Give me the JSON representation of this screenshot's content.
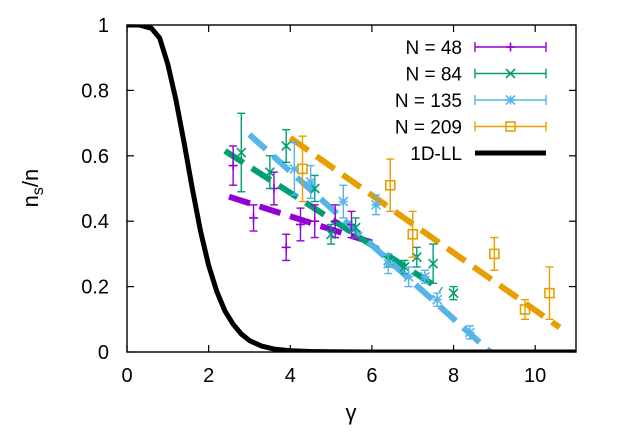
{
  "chart_data": {
    "type": "scatter",
    "xlabel": "γ",
    "ylabel": "n_s/n",
    "xlim": [
      0,
      11
    ],
    "ylim": [
      0,
      1
    ],
    "x_ticks": [
      0,
      2,
      4,
      6,
      8,
      10
    ],
    "y_ticks": [
      0,
      0.2,
      0.4,
      0.6,
      0.8,
      1
    ],
    "x_tick_labels": [
      "0",
      "2",
      "4",
      "6",
      "8",
      "10"
    ],
    "y_tick_labels": [
      "0",
      "0.2",
      "0.4",
      "0.6",
      "0.8",
      "1"
    ],
    "grid": false,
    "legend_position": "top-right",
    "series": [
      {
        "name": "N = 48",
        "color": "#9400d3",
        "marker": "plus",
        "points": [
          {
            "x": 2.6,
            "y": 0.57,
            "err": 0.06
          },
          {
            "x": 3.1,
            "y": 0.41,
            "err": 0.04
          },
          {
            "x": 3.6,
            "y": 0.5,
            "err": 0.05
          },
          {
            "x": 3.9,
            "y": 0.32,
            "err": 0.04
          },
          {
            "x": 4.25,
            "y": 0.39,
            "err": 0.05
          },
          {
            "x": 4.6,
            "y": 0.4,
            "err": 0.05
          },
          {
            "x": 5.1,
            "y": 0.4,
            "err": 0.05
          },
          {
            "x": 5.5,
            "y": 0.39,
            "err": 0.04
          }
        ],
        "fit": [
          [
            2.5,
            0.475
          ],
          [
            6.0,
            0.335
          ]
        ]
      },
      {
        "name": "N = 84",
        "color": "#009e73",
        "marker": "cross",
        "points": [
          {
            "x": 2.8,
            "y": 0.61,
            "err": 0.12
          },
          {
            "x": 3.5,
            "y": 0.55,
            "err": 0.05
          },
          {
            "x": 3.9,
            "y": 0.63,
            "err": 0.05
          },
          {
            "x": 4.6,
            "y": 0.5,
            "err": 0.04
          },
          {
            "x": 5.0,
            "y": 0.36,
            "err": 0.03
          },
          {
            "x": 5.6,
            "y": 0.38,
            "err": 0.03
          },
          {
            "x": 6.4,
            "y": 0.28,
            "err": 0.02
          },
          {
            "x": 6.8,
            "y": 0.26,
            "err": 0.02
          },
          {
            "x": 7.1,
            "y": 0.29,
            "err": 0.03
          },
          {
            "x": 7.5,
            "y": 0.27,
            "err": 0.06
          },
          {
            "x": 8.0,
            "y": 0.18,
            "err": 0.02
          }
        ],
        "fit": [
          [
            2.4,
            0.615
          ],
          [
            7.7,
            0.19
          ]
        ]
      },
      {
        "name": "N = 135",
        "color": "#56b4e9",
        "marker": "star",
        "points": [
          {
            "x": 4.1,
            "y": 0.56,
            "err": 0.08
          },
          {
            "x": 4.5,
            "y": 0.52,
            "err": 0.05
          },
          {
            "x": 5.3,
            "y": 0.46,
            "err": 0.05
          },
          {
            "x": 6.1,
            "y": 0.45,
            "err": 0.03
          },
          {
            "x": 6.4,
            "y": 0.27,
            "err": 0.03
          },
          {
            "x": 6.9,
            "y": 0.23,
            "err": 0.03
          },
          {
            "x": 7.3,
            "y": 0.23,
            "err": 0.02
          },
          {
            "x": 7.6,
            "y": 0.16,
            "err": 0.02
          },
          {
            "x": 8.4,
            "y": 0.06,
            "err": 0.02
          }
        ],
        "fit": [
          [
            3.0,
            0.665
          ],
          [
            8.9,
            0.0
          ]
        ]
      },
      {
        "name": "N = 209",
        "color": "#e69f00",
        "marker": "square",
        "points": [
          {
            "x": 4.3,
            "y": 0.56,
            "err": 0.1
          },
          {
            "x": 6.45,
            "y": 0.51,
            "err": 0.08
          },
          {
            "x": 7.0,
            "y": 0.36,
            "err": 0.07
          },
          {
            "x": 9.0,
            "y": 0.3,
            "err": 0.05
          },
          {
            "x": 9.75,
            "y": 0.13,
            "err": 0.03
          },
          {
            "x": 10.35,
            "y": 0.18,
            "err": 0.08
          }
        ],
        "fit": [
          [
            4.0,
            0.655
          ],
          [
            10.6,
            0.075
          ]
        ]
      },
      {
        "name": "1D-LL",
        "color": "#000000",
        "marker": "none",
        "line": [
          [
            0.0,
            1.0
          ],
          [
            0.3,
            1.0
          ],
          [
            0.6,
            0.99
          ],
          [
            0.8,
            0.96
          ],
          [
            1.0,
            0.88
          ],
          [
            1.2,
            0.77
          ],
          [
            1.4,
            0.64
          ],
          [
            1.6,
            0.5
          ],
          [
            1.8,
            0.37
          ],
          [
            2.0,
            0.265
          ],
          [
            2.2,
            0.185
          ],
          [
            2.4,
            0.125
          ],
          [
            2.6,
            0.085
          ],
          [
            2.8,
            0.055
          ],
          [
            3.0,
            0.035
          ],
          [
            3.3,
            0.018
          ],
          [
            3.6,
            0.009
          ],
          [
            4.0,
            0.004
          ],
          [
            4.5,
            0.0015
          ],
          [
            5.0,
            0.0005
          ],
          [
            6.0,
            0.0001
          ],
          [
            8.0,
            0.0
          ],
          [
            11.0,
            0.0
          ]
        ]
      }
    ]
  }
}
